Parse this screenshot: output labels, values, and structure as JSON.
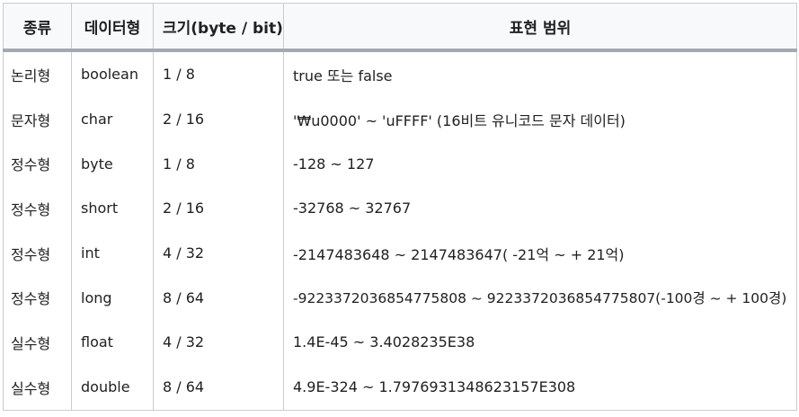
{
  "table": {
    "headers": {
      "kind": "종류",
      "type": "데이터형",
      "size": "크기(byte / bit)",
      "range": "표현 범위"
    },
    "rows": [
      {
        "kind": "논리형",
        "type": "boolean",
        "size": "1 / 8",
        "range": "true 또는 false"
      },
      {
        "kind": "문자형",
        "type": "char",
        "size": "2 / 16",
        "range": "'₩u0000' ~ 'uFFFF' (16비트 유니코드 문자 데이터)"
      },
      {
        "kind": "정수형",
        "type": "byte",
        "size": "1 / 8",
        "range": "-128 ~ 127"
      },
      {
        "kind": "정수형",
        "type": "short",
        "size": "2 / 16",
        "range": "-32768 ~ 32767"
      },
      {
        "kind": "정수형",
        "type": "int",
        "size": "4 / 32",
        "range": "-2147483648 ~ 2147483647( -21억 ~ + 21억)"
      },
      {
        "kind": "정수형",
        "type": "long",
        "size": "8 / 64",
        "range": "-9223372036854775808 ~ 9223372036854775807(-100경 ~ + 100경)"
      },
      {
        "kind": "실수형",
        "type": "float",
        "size": "4 / 32",
        "range": "1.4E-45 ~ 3.4028235E38"
      },
      {
        "kind": "실수형",
        "type": "double",
        "size": "8 / 64",
        "range": "4.9E-324 ~ 1.7976931348623157E308"
      }
    ]
  }
}
